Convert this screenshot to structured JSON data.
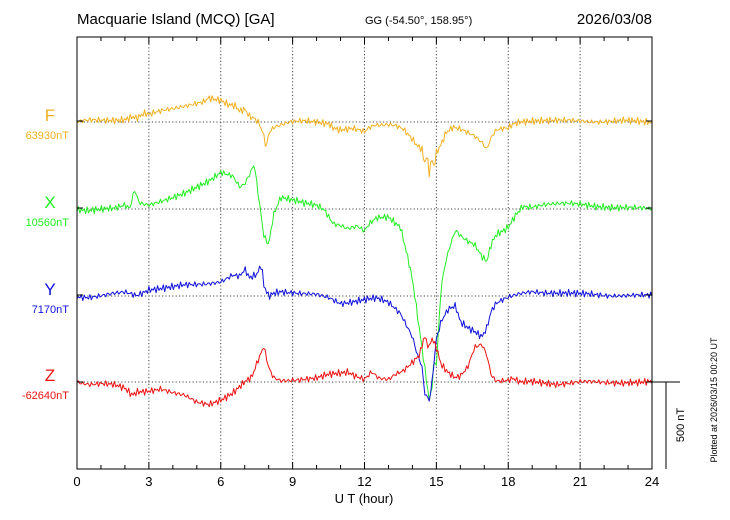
{
  "header": {
    "station": "Macquarie Island (MCQ)  [GA]",
    "coords": "GG (-54.50°, 158.95°)",
    "date": "2026/03/08"
  },
  "footer": {
    "plotted": "Plotted at 2026/03/15 00:20 UT"
  },
  "chart_data": {
    "type": "line",
    "xlabel": "U T (hour)",
    "xlim": [
      0,
      24
    ],
    "xticks": [
      "0",
      "3",
      "6",
      "9",
      "12",
      "15",
      "18",
      "21",
      "24"
    ],
    "grid": true,
    "scale_bar": {
      "label": "500 nT",
      "value_nT": 500
    },
    "series": [
      {
        "name": "F",
        "baseline": "63930nT",
        "baseline_nT": 63930,
        "color": "#f0b020",
        "points": [
          [
            0,
            -3
          ],
          [
            0.5,
            -8
          ],
          [
            1,
            -6
          ],
          [
            1.5,
            -10
          ],
          [
            2,
            -18
          ],
          [
            2.3,
            -35
          ],
          [
            2.5,
            -25
          ],
          [
            2.8,
            -50
          ],
          [
            3,
            -42
          ],
          [
            3.5,
            -60
          ],
          [
            4,
            -75
          ],
          [
            4.5,
            -95
          ],
          [
            5,
            -112
          ],
          [
            5.3,
            -120
          ],
          [
            5.5,
            -140
          ],
          [
            5.7,
            -130
          ],
          [
            6,
            -120
          ],
          [
            6.3,
            -95
          ],
          [
            6.6,
            -90
          ],
          [
            6.8,
            -60
          ],
          [
            7,
            -75
          ],
          [
            7.2,
            -35
          ],
          [
            7.4,
            -25
          ],
          [
            7.6,
            0
          ],
          [
            7.8,
            75
          ],
          [
            7.9,
            150
          ],
          [
            8,
            60
          ],
          [
            8.2,
            30
          ],
          [
            8.6,
            15
          ],
          [
            9,
            2
          ],
          [
            9.5,
            -5
          ],
          [
            10,
            -3
          ],
          [
            10.5,
            5
          ],
          [
            10.7,
            30
          ],
          [
            11,
            45
          ],
          [
            11.5,
            40
          ],
          [
            12,
            60
          ],
          [
            12.2,
            35
          ],
          [
            12.4,
            20
          ],
          [
            12.7,
            15
          ],
          [
            13,
            10
          ],
          [
            13.3,
            15
          ],
          [
            13.6,
            35
          ],
          [
            14,
            100
          ],
          [
            14.2,
            140
          ],
          [
            14.4,
            160
          ],
          [
            14.5,
            250
          ],
          [
            14.6,
            190
          ],
          [
            14.7,
            300
          ],
          [
            14.8,
            210
          ],
          [
            14.9,
            270
          ],
          [
            15,
            180
          ],
          [
            15.2,
            130
          ],
          [
            15.4,
            60
          ],
          [
            15.7,
            25
          ],
          [
            16,
            35
          ],
          [
            16.3,
            55
          ],
          [
            16.6,
            80
          ],
          [
            16.9,
            120
          ],
          [
            17.1,
            160
          ],
          [
            17.3,
            90
          ],
          [
            17.5,
            50
          ],
          [
            17.8,
            40
          ],
          [
            18,
            35
          ],
          [
            18.2,
            10
          ],
          [
            18.5,
            -5
          ],
          [
            19,
            -10
          ],
          [
            20,
            -5
          ],
          [
            21,
            -8
          ],
          [
            22,
            -3
          ],
          [
            23,
            -5
          ],
          [
            24,
            0
          ]
        ]
      },
      {
        "name": "X",
        "baseline": "10560nT",
        "baseline_nT": 10560,
        "color": "#22ee22",
        "points": [
          [
            0,
            0
          ],
          [
            0.5,
            10
          ],
          [
            1,
            5
          ],
          [
            1.5,
            0
          ],
          [
            2,
            -25
          ],
          [
            2.2,
            -5
          ],
          [
            2.4,
            -115
          ],
          [
            2.6,
            -40
          ],
          [
            3,
            -25
          ],
          [
            3.5,
            -40
          ],
          [
            4,
            -60
          ],
          [
            4.5,
            -90
          ],
          [
            5,
            -130
          ],
          [
            5.5,
            -165
          ],
          [
            6,
            -210
          ],
          [
            6.5,
            -185
          ],
          [
            6.8,
            -120
          ],
          [
            7,
            -140
          ],
          [
            7.2,
            -195
          ],
          [
            7.4,
            -260
          ],
          [
            7.6,
            -50
          ],
          [
            7.8,
            150
          ],
          [
            8,
            200
          ],
          [
            8.2,
            30
          ],
          [
            8.5,
            -70
          ],
          [
            9,
            -50
          ],
          [
            9.5,
            -30
          ],
          [
            10,
            -20
          ],
          [
            10.3,
            0
          ],
          [
            10.7,
            80
          ],
          [
            11,
            90
          ],
          [
            11.3,
            110
          ],
          [
            11.7,
            100
          ],
          [
            12,
            130
          ],
          [
            12.2,
            90
          ],
          [
            12.5,
            55
          ],
          [
            13,
            45
          ],
          [
            13.3,
            80
          ],
          [
            13.5,
            100
          ],
          [
            13.8,
            270
          ],
          [
            14,
            400
          ],
          [
            14.2,
            600
          ],
          [
            14.4,
            800
          ],
          [
            14.6,
            1000
          ],
          [
            14.7,
            1100
          ],
          [
            14.8,
            1050
          ],
          [
            14.9,
            880
          ],
          [
            15,
            900
          ],
          [
            15.2,
            450
          ],
          [
            15.4,
            300
          ],
          [
            15.6,
            200
          ],
          [
            15.8,
            120
          ],
          [
            16,
            150
          ],
          [
            16.3,
            180
          ],
          [
            16.6,
            200
          ],
          [
            16.9,
            270
          ],
          [
            17.1,
            300
          ],
          [
            17.3,
            200
          ],
          [
            17.5,
            150
          ],
          [
            17.8,
            130
          ],
          [
            18,
            110
          ],
          [
            18.3,
            40
          ],
          [
            18.6,
            -15
          ],
          [
            19,
            -15
          ],
          [
            19.5,
            -30
          ],
          [
            20,
            -30
          ],
          [
            21,
            -25
          ],
          [
            22,
            -15
          ],
          [
            23,
            -5
          ],
          [
            24,
            0
          ]
        ]
      },
      {
        "name": "Y",
        "baseline": "7170nT",
        "baseline_nT": 7170,
        "color": "#1010dd",
        "points": [
          [
            0,
            0
          ],
          [
            0.5,
            5
          ],
          [
            1,
            0
          ],
          [
            1.5,
            -10
          ],
          [
            2,
            -20
          ],
          [
            2.5,
            -5
          ],
          [
            3,
            -40
          ],
          [
            3.5,
            -45
          ],
          [
            4,
            -50
          ],
          [
            4.5,
            -60
          ],
          [
            5,
            -65
          ],
          [
            5.5,
            -75
          ],
          [
            6,
            -85
          ],
          [
            6.5,
            -120
          ],
          [
            6.8,
            -110
          ],
          [
            7,
            -150
          ],
          [
            7.2,
            -100
          ],
          [
            7.5,
            -120
          ],
          [
            7.7,
            -180
          ],
          [
            7.8,
            -60
          ],
          [
            8,
            0
          ],
          [
            8.2,
            -20
          ],
          [
            8.5,
            -30
          ],
          [
            9,
            -20
          ],
          [
            9.5,
            -10
          ],
          [
            10,
            -5
          ],
          [
            10.5,
            10
          ],
          [
            11,
            40
          ],
          [
            11.5,
            30
          ],
          [
            12,
            20
          ],
          [
            12.5,
            15
          ],
          [
            13,
            40
          ],
          [
            13.5,
            100
          ],
          [
            14,
            230
          ],
          [
            14.2,
            330
          ],
          [
            14.4,
            400
          ],
          [
            14.5,
            550
          ],
          [
            14.7,
            600
          ],
          [
            14.8,
            520
          ],
          [
            15,
            250
          ],
          [
            15.2,
            150
          ],
          [
            15.5,
            80
          ],
          [
            15.8,
            60
          ],
          [
            16,
            150
          ],
          [
            16.3,
            180
          ],
          [
            16.6,
            200
          ],
          [
            16.9,
            230
          ],
          [
            17.1,
            180
          ],
          [
            17.3,
            80
          ],
          [
            17.5,
            40
          ],
          [
            18,
            10
          ],
          [
            18.5,
            -10
          ],
          [
            19,
            -25
          ],
          [
            20,
            -20
          ],
          [
            21,
            -10
          ],
          [
            22,
            -5
          ],
          [
            23,
            -5
          ],
          [
            24,
            0
          ]
        ]
      },
      {
        "name": "Z",
        "baseline": "-62640nT",
        "baseline_nT": -62640,
        "color": "#ee1111",
        "points": [
          [
            0,
            0
          ],
          [
            0.5,
            10
          ],
          [
            1,
            5
          ],
          [
            1.5,
            15
          ],
          [
            2,
            40
          ],
          [
            2.3,
            80
          ],
          [
            2.5,
            60
          ],
          [
            3,
            50
          ],
          [
            3.5,
            35
          ],
          [
            4,
            60
          ],
          [
            4.5,
            80
          ],
          [
            5,
            120
          ],
          [
            5.5,
            130
          ],
          [
            6,
            100
          ],
          [
            6.5,
            60
          ],
          [
            7,
            0
          ],
          [
            7.3,
            -25
          ],
          [
            7.5,
            -100
          ],
          [
            7.8,
            -200
          ],
          [
            8,
            -80
          ],
          [
            8.2,
            -25
          ],
          [
            8.5,
            -10
          ],
          [
            9,
            -15
          ],
          [
            10,
            -20
          ],
          [
            10.5,
            -40
          ],
          [
            11,
            -50
          ],
          [
            11.3,
            -60
          ],
          [
            11.6,
            -40
          ],
          [
            12,
            -20
          ],
          [
            12.3,
            -60
          ],
          [
            12.6,
            -20
          ],
          [
            13,
            -10
          ],
          [
            13.3,
            -40
          ],
          [
            13.6,
            -60
          ],
          [
            13.9,
            -100
          ],
          [
            14.1,
            -130
          ],
          [
            14.3,
            -160
          ],
          [
            14.5,
            -270
          ],
          [
            14.7,
            -200
          ],
          [
            14.8,
            -260
          ],
          [
            15,
            -200
          ],
          [
            15.2,
            -100
          ],
          [
            15.5,
            -50
          ],
          [
            15.8,
            -20
          ],
          [
            16,
            -30
          ],
          [
            16.3,
            -80
          ],
          [
            16.6,
            -200
          ],
          [
            16.9,
            -220
          ],
          [
            17.1,
            -160
          ],
          [
            17.3,
            -40
          ],
          [
            17.5,
            -10
          ],
          [
            18,
            -10
          ],
          [
            18.2,
            -20
          ],
          [
            18.5,
            5
          ],
          [
            19,
            0
          ],
          [
            20,
            10
          ],
          [
            21,
            0
          ],
          [
            22,
            5
          ],
          [
            23,
            0
          ],
          [
            24,
            0
          ]
        ]
      }
    ]
  }
}
